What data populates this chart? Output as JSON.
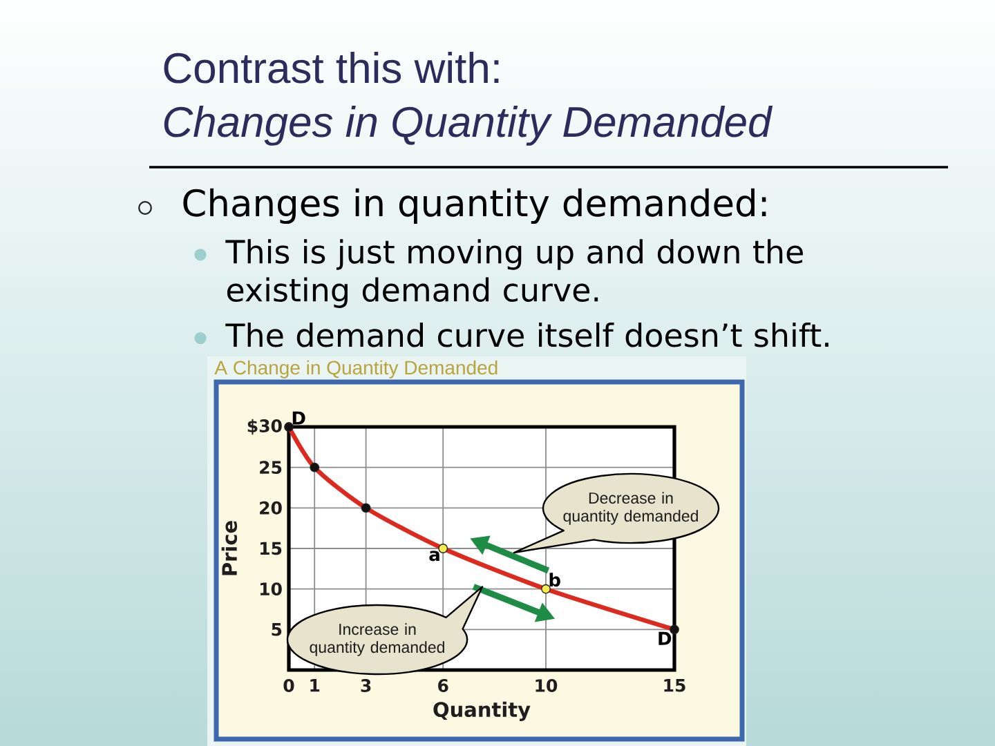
{
  "chart_data": {
    "type": "line",
    "title": "Contrast this with:",
    "subtitle": "Changes in Quantity Demanded",
    "xlabel": "Quantity",
    "ylabel": "Price",
    "x": [
      0,
      1,
      3,
      6,
      10,
      15
    ],
    "series": [
      {
        "color": "#dd2a1f",
        "colors": [
          "#111111",
          "#111111",
          "#111111",
          "#f5ec50",
          "#f5ec50",
          "#111111"
        ],
        "values": [
          30,
          25,
          20,
          15,
          10,
          5
        ]
      }
    ],
    "xlim": [
      0,
      15
    ],
    "ylim": [
      0,
      30
    ],
    "xticks": [
      0,
      1,
      3,
      6,
      10,
      15
    ],
    "yticks": [
      5,
      10,
      15,
      20,
      25,
      {
        "value": 30,
        "label": "$30"
      }
    ],
    "grid": true,
    "marker": "circle",
    "annotations": [
      "Changes in quantity demanded:",
      "This is just moving up and down the existing demand curve.",
      "The demand curve itself doesn’t shift.",
      "A Change in Quantity Demanded",
      "Decrease in quantity demanded",
      "Increase in quantity demanded",
      {
        "text": "D",
        "x": 0,
        "y": 30
      },
      {
        "text": "a",
        "x": 6,
        "y": 15
      },
      {
        "text": "b",
        "x": 10,
        "y": 10
      },
      {
        "text": "D",
        "x": 15,
        "y": 5
      }
    ]
  }
}
